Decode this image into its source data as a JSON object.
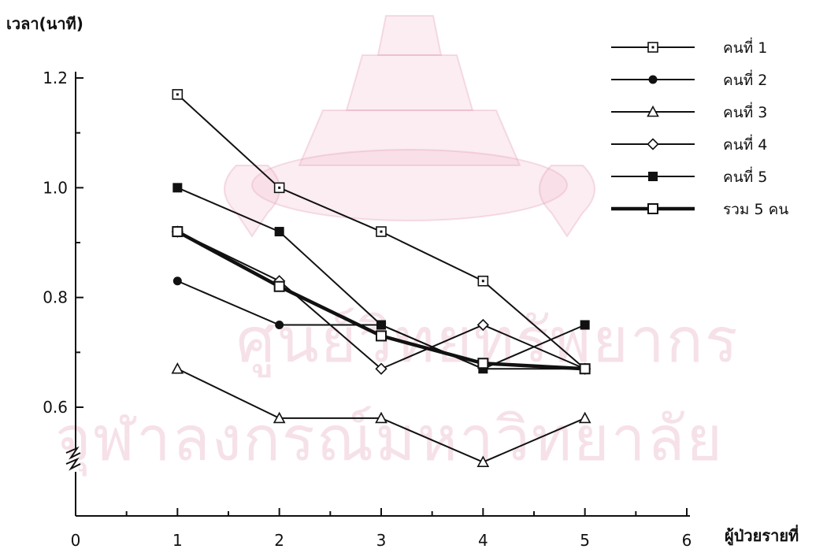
{
  "chart_data": {
    "type": "line",
    "ylabel": "เวลา(นาที)",
    "xlabel": "ผู้ป่วยรายที่",
    "xlim": [
      0,
      6
    ],
    "ylim": [
      0.5,
      1.2
    ],
    "x_ticks": [
      0,
      1,
      2,
      3,
      4,
      5,
      6
    ],
    "y_ticks": [
      0.6,
      0.8,
      1.0,
      1.2
    ],
    "y_tick_labels": [
      "0.6",
      "0.8",
      "1.0",
      "1.2"
    ],
    "y_axis_break": true,
    "legend_position": "top-right",
    "x": [
      1,
      2,
      3,
      4,
      5
    ],
    "series": [
      {
        "name": "คนที่ 1",
        "marker": "dotted-square",
        "values": [
          1.17,
          1.0,
          0.92,
          0.83,
          0.67
        ]
      },
      {
        "name": "คนที่ 2",
        "marker": "filled-circle",
        "values": [
          0.83,
          0.75,
          0.75,
          0.67,
          0.67
        ]
      },
      {
        "name": "คนที่ 3",
        "marker": "open-triangle",
        "values": [
          0.67,
          0.58,
          0.58,
          0.5,
          0.58
        ]
      },
      {
        "name": "คนที่ 4",
        "marker": "open-diamond",
        "values": [
          0.92,
          0.83,
          0.67,
          0.75,
          0.67
        ]
      },
      {
        "name": "คนที่ 5",
        "marker": "filled-square",
        "values": [
          1.0,
          0.92,
          0.75,
          0.67,
          0.75
        ]
      },
      {
        "name": "รวม 5 คน",
        "marker": "open-square",
        "bold": true,
        "values": [
          0.92,
          0.82,
          0.73,
          0.68,
          0.67
        ]
      }
    ]
  },
  "watermark": {
    "line1": "ศูนย์วิทยทรัพยากร",
    "line2": "จุฬาลงกรณ์มหาวิทยาลัย",
    "color": "#e6aabe"
  }
}
